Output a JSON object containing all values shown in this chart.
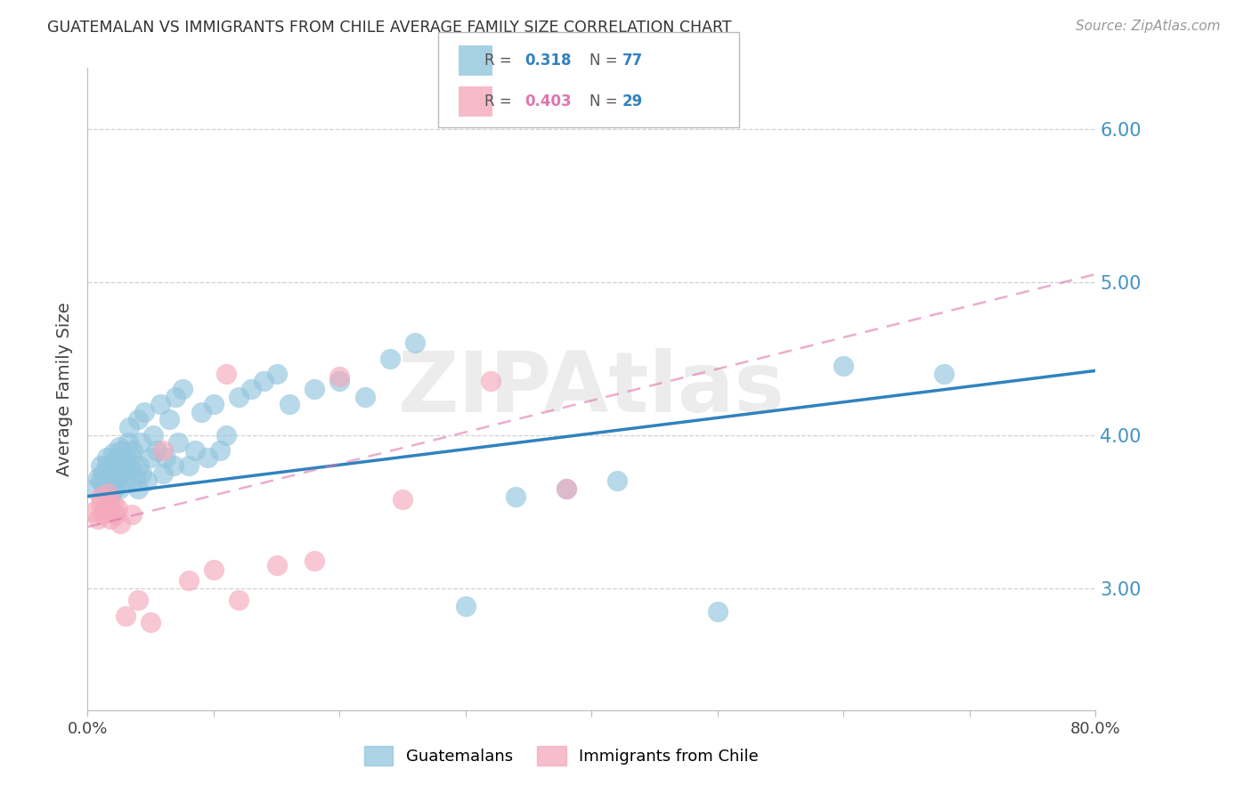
{
  "title": "GUATEMALAN VS IMMIGRANTS FROM CHILE AVERAGE FAMILY SIZE CORRELATION CHART",
  "source": "Source: ZipAtlas.com",
  "ylabel": "Average Family Size",
  "yticks": [
    3.0,
    4.0,
    5.0,
    6.0
  ],
  "xlim": [
    0.0,
    0.8
  ],
  "ylim": [
    2.2,
    6.4
  ],
  "legend1_R": "0.318",
  "legend1_N": "77",
  "legend2_R": "0.403",
  "legend2_N": "29",
  "blue_color": "#92c5de",
  "pink_color": "#f4a9bc",
  "line_blue": "#3182bd",
  "line_pink": "#de77ae",
  "blue_scatter_x": [
    0.005,
    0.008,
    0.01,
    0.01,
    0.012,
    0.013,
    0.015,
    0.015,
    0.016,
    0.017,
    0.018,
    0.018,
    0.019,
    0.02,
    0.02,
    0.02,
    0.021,
    0.022,
    0.022,
    0.023,
    0.024,
    0.025,
    0.025,
    0.026,
    0.027,
    0.028,
    0.03,
    0.03,
    0.031,
    0.032,
    0.033,
    0.034,
    0.035,
    0.036,
    0.038,
    0.04,
    0.04,
    0.041,
    0.042,
    0.043,
    0.045,
    0.047,
    0.05,
    0.052,
    0.055,
    0.058,
    0.06,
    0.062,
    0.065,
    0.068,
    0.07,
    0.072,
    0.075,
    0.08,
    0.085,
    0.09,
    0.095,
    0.1,
    0.105,
    0.11,
    0.12,
    0.13,
    0.14,
    0.15,
    0.16,
    0.18,
    0.2,
    0.22,
    0.24,
    0.26,
    0.3,
    0.34,
    0.38,
    0.42,
    0.5,
    0.6,
    0.68
  ],
  "blue_scatter_y": [
    3.65,
    3.72,
    3.7,
    3.8,
    3.75,
    3.65,
    3.8,
    3.85,
    3.68,
    3.75,
    3.72,
    3.6,
    3.78,
    3.7,
    3.82,
    3.88,
    3.65,
    3.75,
    3.8,
    3.85,
    3.7,
    3.92,
    3.65,
    3.78,
    3.9,
    3.75,
    3.8,
    3.85,
    3.7,
    3.95,
    4.05,
    3.78,
    3.85,
    3.9,
    3.72,
    4.1,
    3.65,
    3.8,
    3.95,
    3.75,
    4.15,
    3.7,
    3.85,
    4.0,
    3.9,
    4.2,
    3.75,
    3.85,
    4.1,
    3.8,
    4.25,
    3.95,
    4.3,
    3.8,
    3.9,
    4.15,
    3.85,
    4.2,
    3.9,
    4.0,
    4.25,
    4.3,
    4.35,
    4.4,
    4.2,
    4.3,
    4.35,
    4.25,
    4.5,
    4.6,
    2.88,
    3.6,
    3.65,
    3.7,
    2.85,
    4.45,
    4.4
  ],
  "pink_scatter_x": [
    0.005,
    0.008,
    0.01,
    0.01,
    0.012,
    0.014,
    0.015,
    0.016,
    0.018,
    0.018,
    0.02,
    0.022,
    0.024,
    0.026,
    0.03,
    0.035,
    0.04,
    0.05,
    0.06,
    0.08,
    0.1,
    0.11,
    0.12,
    0.15,
    0.18,
    0.2,
    0.25,
    0.32,
    0.38
  ],
  "pink_scatter_y": [
    3.5,
    3.45,
    3.55,
    3.6,
    3.48,
    3.52,
    3.58,
    3.62,
    3.45,
    3.5,
    3.55,
    3.48,
    3.52,
    3.42,
    2.82,
    3.48,
    2.92,
    2.78,
    3.9,
    3.05,
    3.12,
    4.4,
    2.92,
    3.15,
    3.18,
    4.38,
    3.58,
    4.35,
    3.65
  ],
  "blue_line_x": [
    0.0,
    0.8
  ],
  "blue_line_y": [
    3.6,
    4.42
  ],
  "pink_line_x": [
    0.0,
    0.8
  ],
  "pink_line_y": [
    3.4,
    5.05
  ],
  "background_color": "#ffffff",
  "grid_color": "#cccccc",
  "tick_color": "#4393c3",
  "watermark": "ZIPAtlas"
}
